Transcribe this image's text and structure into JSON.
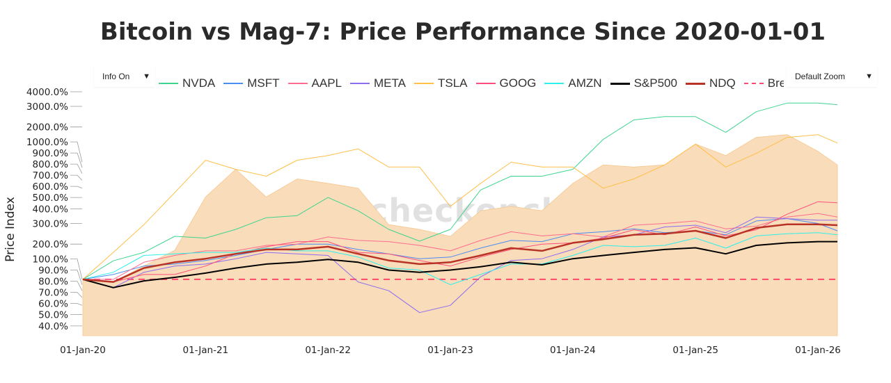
{
  "title": "Bitcoin vs Mag-7: Price Performance Since 2020-01-01",
  "controls": {
    "info_label": "Info On",
    "zoom_label": "Default Zoom",
    "dropdown_icon": "triangle-down-icon"
  },
  "watermark": "checkonchain",
  "chart_data": {
    "type": "line",
    "title": "Bitcoin vs Mag-7: Price Performance Since 2020-01-01",
    "ylabel": "Price Index",
    "xlabel": "",
    "y_scale": "log",
    "ylim": [
      33,
      4400
    ],
    "xlim": [
      "2020-01-01",
      "2026-02-28"
    ],
    "grid": false,
    "legend_placement": "top",
    "y_ticks": [
      {
        "v": 4000,
        "label": "4000.0%"
      },
      {
        "v": 3000,
        "label": "3000.0%"
      },
      {
        "v": 2000,
        "label": "2000.0%"
      },
      {
        "v": 1000,
        "label": "1000.0%"
      },
      {
        "v": 900,
        "label": "900.0%"
      },
      {
        "v": 800,
        "label": "800.0%"
      },
      {
        "v": 700,
        "label": "700.0%"
      },
      {
        "v": 600,
        "label": "600.0%"
      },
      {
        "v": 500,
        "label": "500.0%"
      },
      {
        "v": 400,
        "label": "400.0%"
      },
      {
        "v": 300,
        "label": "300.0%"
      },
      {
        "v": 200,
        "label": "200.0%"
      },
      {
        "v": 100,
        "label": "100.0%"
      },
      {
        "v": 90,
        "label": "90.0%"
      },
      {
        "v": 80,
        "label": "80.0%"
      },
      {
        "v": 70,
        "label": "70.0%"
      },
      {
        "v": 60,
        "label": "60.0%"
      },
      {
        "v": 50,
        "label": "50.0%"
      },
      {
        "v": 40,
        "label": "40.0%"
      }
    ],
    "x_ticks": [
      {
        "d": "2020-01-01",
        "label": "01-Jan-20"
      },
      {
        "d": "2021-01-01",
        "label": "01-Jan-21"
      },
      {
        "d": "2022-01-01",
        "label": "01-Jan-22"
      },
      {
        "d": "2023-01-01",
        "label": "01-Jan-23"
      },
      {
        "d": "2024-01-01",
        "label": "01-Jan-24"
      },
      {
        "d": "2025-01-01",
        "label": "01-Jan-25"
      },
      {
        "d": "2026-01-01",
        "label": "01-Jan-26"
      }
    ],
    "x": [
      "2020-01-01",
      "2020-04-01",
      "2020-07-01",
      "2020-10-01",
      "2021-01-01",
      "2021-04-01",
      "2021-07-01",
      "2021-10-01",
      "2022-01-01",
      "2022-04-01",
      "2022-07-01",
      "2022-10-01",
      "2023-01-01",
      "2023-04-01",
      "2023-07-01",
      "2023-10-01",
      "2024-01-01",
      "2024-04-01",
      "2024-07-01",
      "2024-10-01",
      "2025-01-01",
      "2025-04-01",
      "2025-07-01",
      "2025-10-01",
      "2026-01-01",
      "2026-02-28"
    ],
    "area": {
      "color": "#f9dcb9",
      "values": [
        100,
        95,
        130,
        177,
        505,
        870,
        505,
        720,
        660,
        600,
        293,
        267,
        233,
        385,
        420,
        385,
        660,
        950,
        910,
        950,
        1430,
        1140,
        1630,
        1720,
        1240,
        950
      ]
    },
    "series": [
      {
        "name": "NVDA",
        "color": "#3ed48f",
        "width": 1,
        "values": [
          100,
          144,
          170,
          233,
          225,
          267,
          336,
          350,
          500,
          385,
          267,
          212,
          267,
          580,
          760,
          760,
          870,
          1570,
          2300,
          2450,
          2450,
          1800,
          2700,
          3200,
          3200,
          3100
        ]
      },
      {
        "name": "MSFT",
        "color": "#4b8cf2",
        "width": 1,
        "values": [
          100,
          110,
          130,
          135,
          145,
          160,
          180,
          200,
          200,
          180,
          165,
          150,
          155,
          185,
          215,
          210,
          245,
          255,
          270,
          250,
          260,
          240,
          315,
          330,
          300,
          260
        ]
      },
      {
        "name": "AAPL",
        "color": "#ff6b8f",
        "width": 1,
        "values": [
          100,
          100,
          140,
          160,
          175,
          175,
          195,
          200,
          230,
          215,
          210,
          195,
          175,
          215,
          255,
          235,
          245,
          230,
          290,
          300,
          315,
          270,
          285,
          340,
          365,
          340
        ]
      },
      {
        "name": "META",
        "color": "#8c6cf0",
        "width": 1,
        "values": [
          100,
          85,
          115,
          130,
          135,
          150,
          170,
          165,
          160,
          95,
          80,
          52,
          60,
          105,
          145,
          150,
          180,
          230,
          240,
          280,
          290,
          250,
          340,
          330,
          320,
          320
        ]
      },
      {
        "name": "TSLA",
        "color": "#ffbf47",
        "width": 1,
        "values": [
          100,
          170,
          293,
          550,
          1040,
          870,
          760,
          1040,
          1140,
          1300,
          910,
          910,
          420,
          660,
          1000,
          910,
          910,
          600,
          720,
          950,
          1430,
          910,
          1190,
          1630,
          1720,
          1460
        ]
      },
      {
        "name": "GOOG",
        "color": "#ff4f7b",
        "width": 1,
        "values": [
          100,
          95,
          110,
          110,
          130,
          165,
          190,
          210,
          210,
          170,
          165,
          145,
          130,
          155,
          180,
          200,
          205,
          225,
          265,
          240,
          280,
          235,
          265,
          360,
          460,
          450
        ]
      },
      {
        "name": "AMZN",
        "color": "#2cf0ec",
        "width": 1,
        "values": [
          100,
          115,
          160,
          165,
          170,
          170,
          185,
          175,
          175,
          155,
          125,
          120,
          90,
          110,
          135,
          135,
          160,
          195,
          190,
          195,
          225,
          185,
          235,
          245,
          250,
          240
        ]
      },
      {
        "name": "S&P500",
        "color": "#000000",
        "width": 2,
        "values": [
          100,
          85,
          97,
          104,
          113,
          125,
          135,
          140,
          148,
          140,
          120,
          115,
          120,
          128,
          140,
          133,
          150,
          160,
          170,
          180,
          186,
          165,
          195,
          205,
          210,
          210
        ]
      },
      {
        "name": "NDQ",
        "color": "#b83226",
        "width": 2.5,
        "values": [
          100,
          95,
          125,
          140,
          150,
          165,
          180,
          180,
          190,
          165,
          145,
          135,
          140,
          160,
          185,
          175,
          205,
          220,
          240,
          245,
          260,
          225,
          275,
          295,
          295,
          290
        ]
      }
    ],
    "reference_line": {
      "name": "Break",
      "value": 100,
      "color": "#ff4a6e",
      "style": "dashed"
    }
  }
}
